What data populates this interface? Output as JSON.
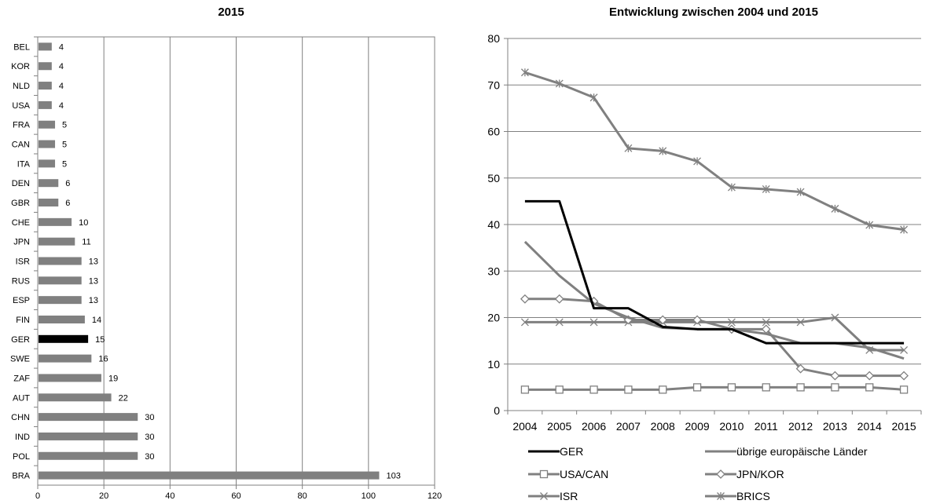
{
  "chart_data": [
    {
      "type": "bar",
      "orientation": "horizontal",
      "title": "2015",
      "xlabel": "",
      "ylabel": "",
      "xlim": [
        0,
        120
      ],
      "x_ticks": [
        "0",
        "20",
        "40",
        "60",
        "80",
        "100",
        "120"
      ],
      "grid": true,
      "categories": [
        "BEL",
        "KOR",
        "NLD",
        "USA",
        "FRA",
        "CAN",
        "ITA",
        "DEN",
        "GBR",
        "CHE",
        "JPN",
        "ISR",
        "RUS",
        "ESP",
        "FIN",
        "GER",
        "SWE",
        "ZAF",
        "AUT",
        "CHN",
        "IND",
        "POL",
        "BRA"
      ],
      "values": [
        4,
        4,
        4,
        4,
        5,
        5,
        5,
        6,
        6,
        10,
        11,
        13,
        13,
        13,
        14,
        15,
        16,
        19,
        22,
        30,
        30,
        30,
        103
      ],
      "data_labels": [
        "4",
        "4",
        "4",
        "4",
        "5",
        "5",
        "5",
        "6",
        "6",
        "10",
        "11",
        "13",
        "13",
        "13",
        "14",
        "15",
        "16",
        "19",
        "22",
        "30",
        "30",
        "30",
        "103"
      ],
      "bar_color": "#808080",
      "highlight_category": "GER",
      "highlight_color": "#000000"
    },
    {
      "type": "line",
      "title": "Entwicklung zwischen 2004 und 2015",
      "xlabel": "",
      "ylabel": "",
      "ylim": [
        0,
        80
      ],
      "y_ticks": [
        "0",
        "10",
        "20",
        "30",
        "40",
        "50",
        "60",
        "70",
        "80"
      ],
      "grid": true,
      "x": [
        "2004",
        "2005",
        "2006",
        "2007",
        "2008",
        "2009",
        "2010",
        "2011",
        "2012",
        "2013",
        "2014",
        "2015"
      ],
      "legend_position": "bottom",
      "series": [
        {
          "name": "GER",
          "color": "#000000",
          "marker": "none",
          "values": [
            45,
            45,
            22,
            22,
            18,
            17.5,
            17.5,
            14.5,
            14.5,
            14.5,
            14.5,
            14.5
          ]
        },
        {
          "name": "übrige europäische Länder",
          "color": "#808080",
          "marker": "none",
          "values": [
            36.3,
            29,
            23,
            20,
            17.8,
            17.5,
            17.5,
            16.5,
            14.5,
            14.5,
            13.5,
            11.2
          ]
        },
        {
          "name": "USA/CAN",
          "color": "#808080",
          "marker": "square",
          "values": [
            4.5,
            4.5,
            4.5,
            4.5,
            4.5,
            5,
            5,
            5,
            5,
            5,
            5,
            4.5
          ]
        },
        {
          "name": "JPN/KOR",
          "color": "#808080",
          "marker": "diamond",
          "values": [
            24,
            24,
            23.5,
            19.5,
            19.5,
            19.5,
            17.5,
            17.5,
            9,
            7.5,
            7.5,
            7.5
          ]
        },
        {
          "name": "ISR",
          "color": "#808080",
          "marker": "x",
          "values": [
            19,
            19,
            19,
            19,
            19,
            19,
            19,
            19,
            19,
            20,
            13,
            13
          ]
        },
        {
          "name": "BRICS",
          "color": "#808080",
          "marker": "star",
          "values": [
            72.7,
            70.3,
            67.3,
            56.4,
            55.8,
            53.6,
            48,
            47.6,
            47,
            43.4,
            39.9,
            38.9
          ]
        }
      ]
    }
  ]
}
